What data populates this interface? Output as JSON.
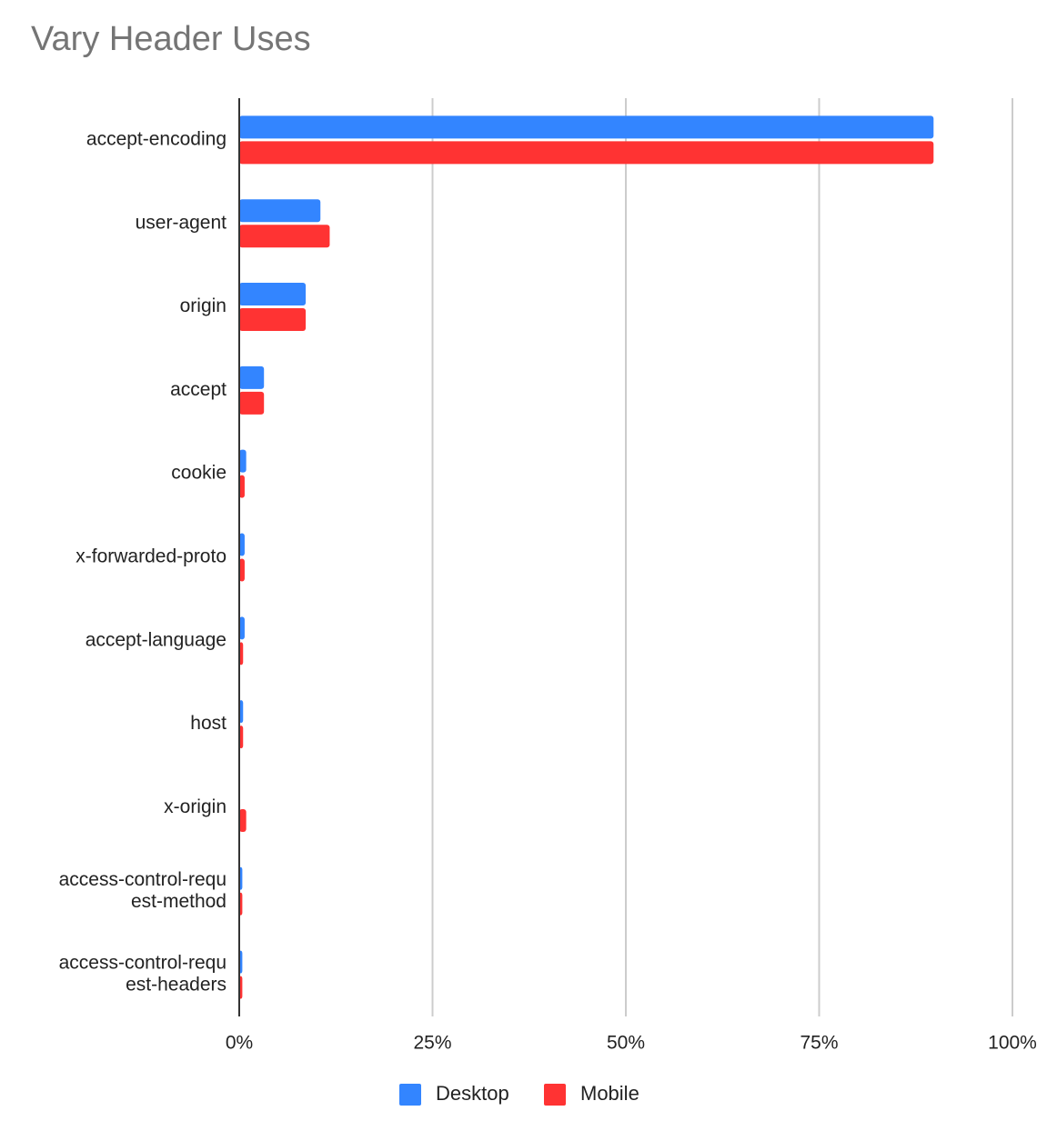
{
  "chart_data": {
    "type": "bar",
    "orientation": "horizontal",
    "title": "Vary Header Uses",
    "categories": [
      [
        "accept-encoding"
      ],
      [
        "user-agent"
      ],
      [
        "origin"
      ],
      [
        "accept"
      ],
      [
        "cookie"
      ],
      [
        "x-forwarded-proto"
      ],
      [
        "accept-language"
      ],
      [
        "host"
      ],
      [
        "x-origin"
      ],
      [
        "access-control-requ",
        "est-method"
      ],
      [
        "access-control-requ",
        "est-headers"
      ]
    ],
    "series": [
      {
        "name": "Desktop",
        "color": "#3385FF",
        "values": [
          89.8,
          10.5,
          8.6,
          3.2,
          0.9,
          0.7,
          0.7,
          0.5,
          0.0,
          0.4,
          0.4
        ]
      },
      {
        "name": "Mobile",
        "color": "#FF3333",
        "values": [
          89.8,
          11.7,
          8.6,
          3.2,
          0.7,
          0.7,
          0.5,
          0.5,
          0.9,
          0.4,
          0.4
        ]
      }
    ],
    "xlim": [
      0,
      100
    ],
    "x_ticks": [
      0,
      25,
      50,
      75,
      100
    ],
    "x_tick_labels": [
      "0%",
      "25%",
      "50%",
      "75%",
      "100%"
    ],
    "xlabel": "",
    "ylabel": "",
    "grid": "vertical",
    "legend": "bottom"
  }
}
